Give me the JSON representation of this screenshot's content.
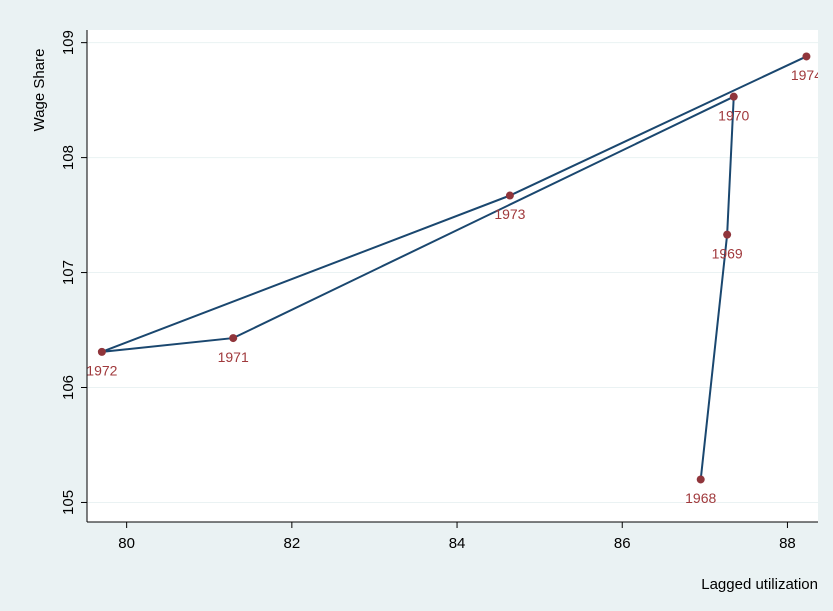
{
  "chart_data": {
    "type": "connected-scatter",
    "x_label": "Lagged utilization",
    "y_label": "Wage Share",
    "x": [
      86.95,
      87.27,
      87.35,
      81.29,
      79.7,
      84.64,
      88.23
    ],
    "values": [
      105.2,
      107.33,
      108.53,
      106.43,
      106.31,
      107.67,
      108.88
    ],
    "point_labels": [
      "1968",
      "1969",
      "1970",
      "1971",
      "1972",
      "1973",
      "1974"
    ],
    "line_color": "#1a476f",
    "marker_color": "#90353b",
    "xlim": [
      79.52,
      88.37
    ],
    "ylim": [
      104.83,
      109.11
    ],
    "xticks": [
      80,
      82,
      84,
      86,
      88
    ],
    "yticks": [
      105,
      106,
      107,
      108,
      109
    ],
    "grid": true
  }
}
